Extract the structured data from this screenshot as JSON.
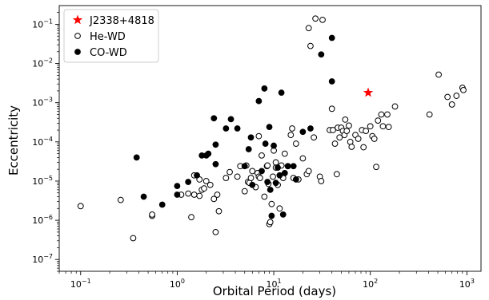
{
  "chart_data": {
    "type": "scatter",
    "xlabel": "Orbital Period (days)",
    "ylabel": "Eccentricity",
    "xscale": "log",
    "yscale": "log",
    "xlim": [
      0.06,
      1400
    ],
    "ylim": [
      5e-08,
      0.3
    ],
    "x_ticks": [
      {
        "value": 0.1,
        "base": "10",
        "exp": "−1"
      },
      {
        "value": 1,
        "base": "10",
        "exp": "0"
      },
      {
        "value": 10,
        "base": "10",
        "exp": "1"
      },
      {
        "value": 100,
        "base": "10",
        "exp": "2"
      },
      {
        "value": 1000,
        "base": "10",
        "exp": "3"
      }
    ],
    "y_ticks": [
      {
        "value": 1e-07,
        "base": "10",
        "exp": "−7"
      },
      {
        "value": 1e-06,
        "base": "10",
        "exp": "−6"
      },
      {
        "value": 1e-05,
        "base": "10",
        "exp": "−5"
      },
      {
        "value": 0.0001,
        "base": "10",
        "exp": "−4"
      },
      {
        "value": 0.001,
        "base": "10",
        "exp": "−3"
      },
      {
        "value": 0.01,
        "base": "10",
        "exp": "−2"
      },
      {
        "value": 0.1,
        "base": "10",
        "exp": "−1"
      }
    ],
    "grid": false,
    "legend_position": "top-left",
    "series": [
      {
        "name": "J2338+4818",
        "marker": "star",
        "color": "#ff0000",
        "points": [
          [
            95,
            0.0018
          ]
        ]
      },
      {
        "name": "He-WD",
        "marker": "open-circle",
        "color": "#000000",
        "points": [
          [
            0.1,
            2.3e-06
          ],
          [
            0.26,
            3.3e-06
          ],
          [
            0.35,
            3.5e-07
          ],
          [
            0.55,
            1.3e-06
          ],
          [
            0.55,
            1.4e-06
          ],
          [
            1.1,
            4.5e-06
          ],
          [
            1.3,
            4.8e-06
          ],
          [
            1.4,
            1.2e-06
          ],
          [
            1.5,
            4.5e-06
          ],
          [
            1.5,
            1.4e-05
          ],
          [
            1.7,
            1.1e-05
          ],
          [
            1.7,
            4.2e-06
          ],
          [
            1.8,
            6e-06
          ],
          [
            1.9,
            6.5e-06
          ],
          [
            2,
            1e-05
          ],
          [
            2.2,
            8e-06
          ],
          [
            2.4,
            3.5e-06
          ],
          [
            2.5,
            5e-07
          ],
          [
            2.6,
            4.5e-06
          ],
          [
            2.7,
            1.7e-06
          ],
          [
            3.2,
            1.2e-05
          ],
          [
            3.5,
            1.7e-05
          ],
          [
            4.2,
            1.3e-05
          ],
          [
            4.5,
            2.4e-05
          ],
          [
            5,
            5.5e-06
          ],
          [
            5.2,
            2.5e-05
          ],
          [
            5.4,
            9.5e-06
          ],
          [
            5.6,
            9e-06
          ],
          [
            5.8,
            1.2e-05
          ],
          [
            6,
            1.8e-05
          ],
          [
            6.5,
            7e-06
          ],
          [
            6.8,
            1.6e-05
          ],
          [
            7,
            1.3e-05
          ],
          [
            7,
            0.00014
          ],
          [
            7.2,
            1.2e-05
          ],
          [
            7.5,
            4.5e-05
          ],
          [
            8,
            4e-06
          ],
          [
            8.5,
            2.4e-05
          ],
          [
            8.6,
            2.5e-05
          ],
          [
            8.8,
            8.5e-06
          ],
          [
            9,
            8e-07
          ],
          [
            9.2,
            9e-07
          ],
          [
            9.5,
            2.6e-06
          ],
          [
            9.8,
            1.3e-05
          ],
          [
            10,
            6e-05
          ],
          [
            10.5,
            3e-05
          ],
          [
            10.5,
            2.2e-05
          ],
          [
            11,
            8e-06
          ],
          [
            11.5,
            2e-06
          ],
          [
            12,
            2.5e-05
          ],
          [
            12.5,
            1.2e-05
          ],
          [
            13,
            5e-05
          ],
          [
            14,
            2.4e-05
          ],
          [
            15,
            0.00015
          ],
          [
            15.5,
            0.00022
          ],
          [
            16,
            1.2e-05
          ],
          [
            17,
            9e-05
          ],
          [
            18,
            1.1e-05
          ],
          [
            20,
            3.8e-05
          ],
          [
            22,
            1.5e-05
          ],
          [
            23,
            1.8e-05
          ],
          [
            23,
            0.08
          ],
          [
            24,
            0.028
          ],
          [
            26,
            0.00013
          ],
          [
            27,
            0.14
          ],
          [
            30,
            1.3e-05
          ],
          [
            31,
            1e-05
          ],
          [
            32,
            0.13
          ],
          [
            38,
            0.0002
          ],
          [
            40,
            0.0007
          ],
          [
            41,
            0.0002
          ],
          [
            43,
            9e-05
          ],
          [
            45,
            1.5e-05
          ],
          [
            46,
            0.00023
          ],
          [
            48,
            0.00013
          ],
          [
            50,
            0.00023
          ],
          [
            52,
            0.00019
          ],
          [
            54,
            0.00015
          ],
          [
            55,
            0.00037
          ],
          [
            57,
            0.00019
          ],
          [
            60,
            0.00026
          ],
          [
            62,
            0.0001
          ],
          [
            64,
            7.5e-05
          ],
          [
            70,
            0.00015
          ],
          [
            75,
            0.00012
          ],
          [
            82,
            0.0002
          ],
          [
            85,
            7.3e-05
          ],
          [
            90,
            0.00019
          ],
          [
            100,
            0.00025
          ],
          [
            105,
            0.00014
          ],
          [
            110,
            0.00012
          ],
          [
            115,
            2.3e-05
          ],
          [
            120,
            0.00035
          ],
          [
            130,
            0.0005
          ],
          [
            135,
            0.00025
          ],
          [
            150,
            0.0005
          ],
          [
            155,
            0.00024
          ],
          [
            180,
            0.0008
          ],
          [
            410,
            0.0005
          ],
          [
            510,
            0.0052
          ],
          [
            630,
            0.0014
          ],
          [
            700,
            0.0009
          ],
          [
            780,
            0.0015
          ],
          [
            900,
            0.0024
          ],
          [
            920,
            0.0021
          ]
        ]
      },
      {
        "name": "CO-WD",
        "marker": "filled-circle",
        "color": "#000000",
        "points": [
          [
            0.38,
            4e-05
          ],
          [
            0.45,
            4e-06
          ],
          [
            0.7,
            2.5e-06
          ],
          [
            1,
            7.5e-06
          ],
          [
            1,
            4.5e-06
          ],
          [
            1.3,
            9.5e-06
          ],
          [
            1.6,
            1.4e-05
          ],
          [
            1.8,
            4.5e-05
          ],
          [
            2,
            4.5e-05
          ],
          [
            2.1,
            5e-05
          ],
          [
            2.4,
            0.0004
          ],
          [
            2.5,
            2.7e-05
          ],
          [
            2.5,
            8.5e-05
          ],
          [
            3.2,
            0.00022
          ],
          [
            3.6,
            0.00038
          ],
          [
            4.2,
            0.00022
          ],
          [
            5,
            2.4e-05
          ],
          [
            5.5,
            6.5e-05
          ],
          [
            5.8,
            0.00013
          ],
          [
            6,
            8e-06
          ],
          [
            7,
            0.0011
          ],
          [
            7.5,
            1.8e-05
          ],
          [
            8,
            0.0023
          ],
          [
            8.2,
            9e-05
          ],
          [
            8.6,
            9.5e-06
          ],
          [
            9,
            0.00024
          ],
          [
            9.2,
            6e-06
          ],
          [
            9.5,
            1.3e-06
          ],
          [
            10,
            8e-05
          ],
          [
            10.5,
            9e-06
          ],
          [
            11,
            2.2e-05
          ],
          [
            11.5,
            1.4e-05
          ],
          [
            12,
            0.0018
          ],
          [
            12.5,
            1.4e-06
          ],
          [
            13,
            1.6e-05
          ],
          [
            14,
            2.4e-05
          ],
          [
            16,
            2.4e-05
          ],
          [
            17,
            1.1e-05
          ],
          [
            20,
            0.00018
          ],
          [
            24,
            0.00022
          ],
          [
            31,
            0.017
          ],
          [
            40,
            0.045
          ],
          [
            40,
            0.0035
          ]
        ]
      }
    ]
  }
}
